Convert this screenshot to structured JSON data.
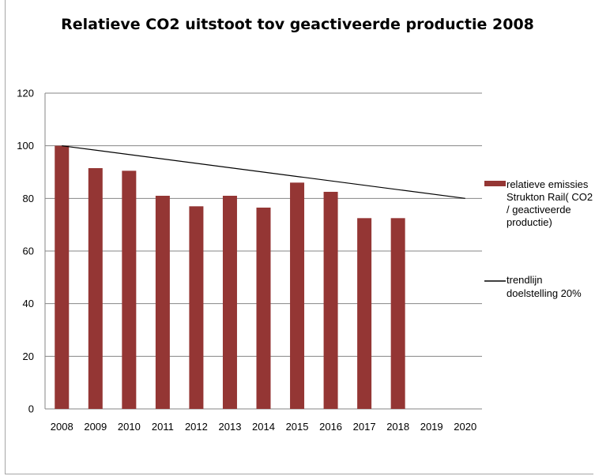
{
  "chart_data": {
    "type": "bar",
    "title": "Relatieve CO2 uitstoot tov geactiveerde productie 2008",
    "xlabel": "",
    "ylabel": "",
    "categories": [
      "2008",
      "2009",
      "2010",
      "2011",
      "2012",
      "2013",
      "2014",
      "2015",
      "2016",
      "2017",
      "2018",
      "2019",
      "2020"
    ],
    "ylim": [
      0,
      120
    ],
    "yticks": [
      0,
      20,
      40,
      60,
      80,
      100,
      120
    ],
    "grid": true,
    "legend_position": "right",
    "series": [
      {
        "name": "relatieve emissies Strukton Rail( CO2 / geactiveerde productie)",
        "type": "bar",
        "color": "#943634",
        "values": [
          100,
          91.5,
          90.5,
          81,
          77,
          81,
          76.5,
          86,
          82.5,
          72.5,
          72.5,
          null,
          null
        ]
      },
      {
        "name": "trendlijn doelstelling 20%",
        "type": "line",
        "color": "#000000",
        "points": [
          [
            "2008",
            100
          ],
          [
            "2020",
            80
          ]
        ]
      }
    ],
    "legend": [
      {
        "lines": [
          "relatieve emissies",
          "Strukton Rail( CO2",
          "/ geactiveerde",
          "productie)"
        ]
      },
      {
        "lines": [
          "trendlijn",
          "doelstelling 20%"
        ]
      }
    ]
  }
}
